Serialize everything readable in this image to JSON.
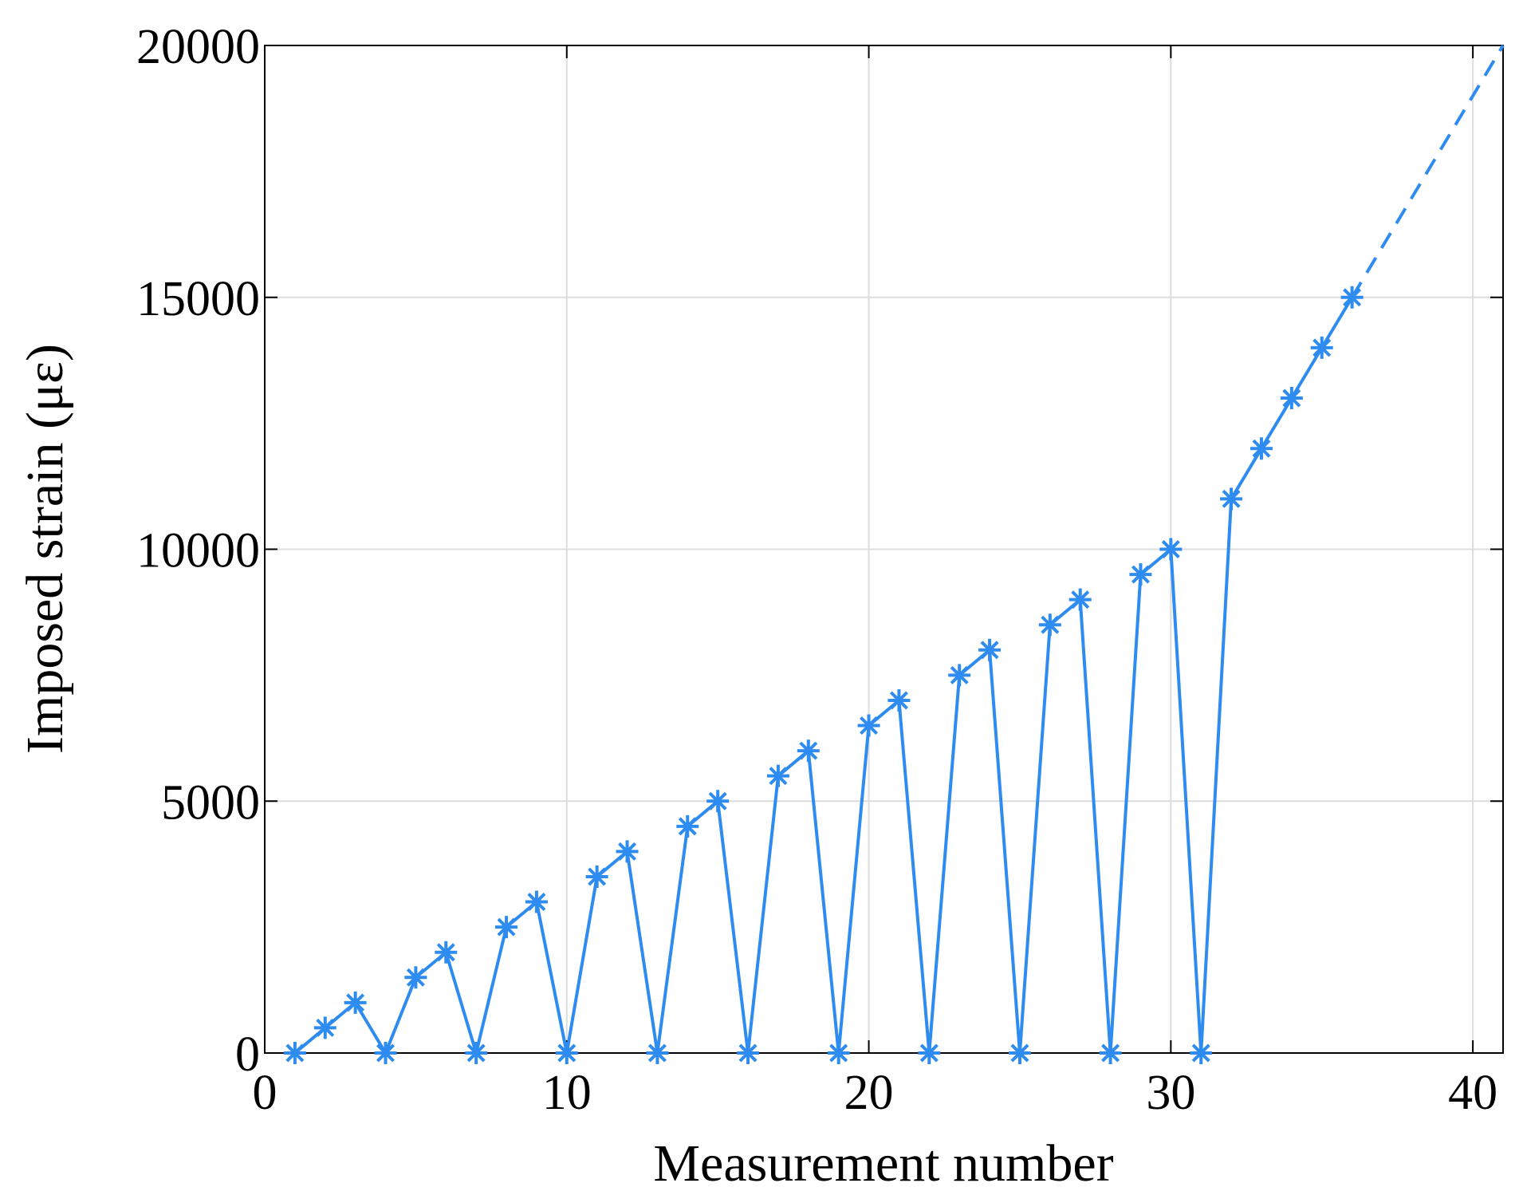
{
  "chart_data": {
    "type": "line",
    "xlabel": "Measurement number",
    "ylabel": "Imposed strain (με)",
    "series": [
      {
        "color": "#2e8cf0",
        "style": "solid",
        "marker": "asterisk",
        "x": [
          1,
          2,
          3,
          4,
          5,
          6,
          7,
          8,
          9,
          10,
          11,
          12,
          13,
          14,
          15,
          16,
          17,
          18,
          19,
          20,
          21,
          22,
          23,
          24,
          25,
          26,
          27,
          28,
          29,
          30,
          31,
          32,
          33,
          34,
          35,
          36
        ],
        "values": [
          0,
          500,
          1000,
          0,
          1500,
          2000,
          0,
          2500,
          3000,
          0,
          3500,
          4000,
          0,
          4500,
          5000,
          0,
          5500,
          6000,
          0,
          6500,
          7000,
          0,
          7500,
          8000,
          0,
          8500,
          9000,
          0,
          9500,
          10000,
          0,
          11000,
          12000,
          13000,
          14000,
          15000
        ]
      },
      {
        "color": "#2e8cf0",
        "style": "dashed",
        "marker": "none",
        "x": [
          36,
          41
        ],
        "values": [
          15000,
          20000
        ]
      }
    ],
    "xlim": [
      0,
      41
    ],
    "xticks": [
      0,
      10,
      20,
      30,
      40
    ],
    "ylim": [
      0,
      20000
    ],
    "yticks": [
      0,
      5000,
      10000,
      15000,
      20000
    ],
    "grid": true
  }
}
